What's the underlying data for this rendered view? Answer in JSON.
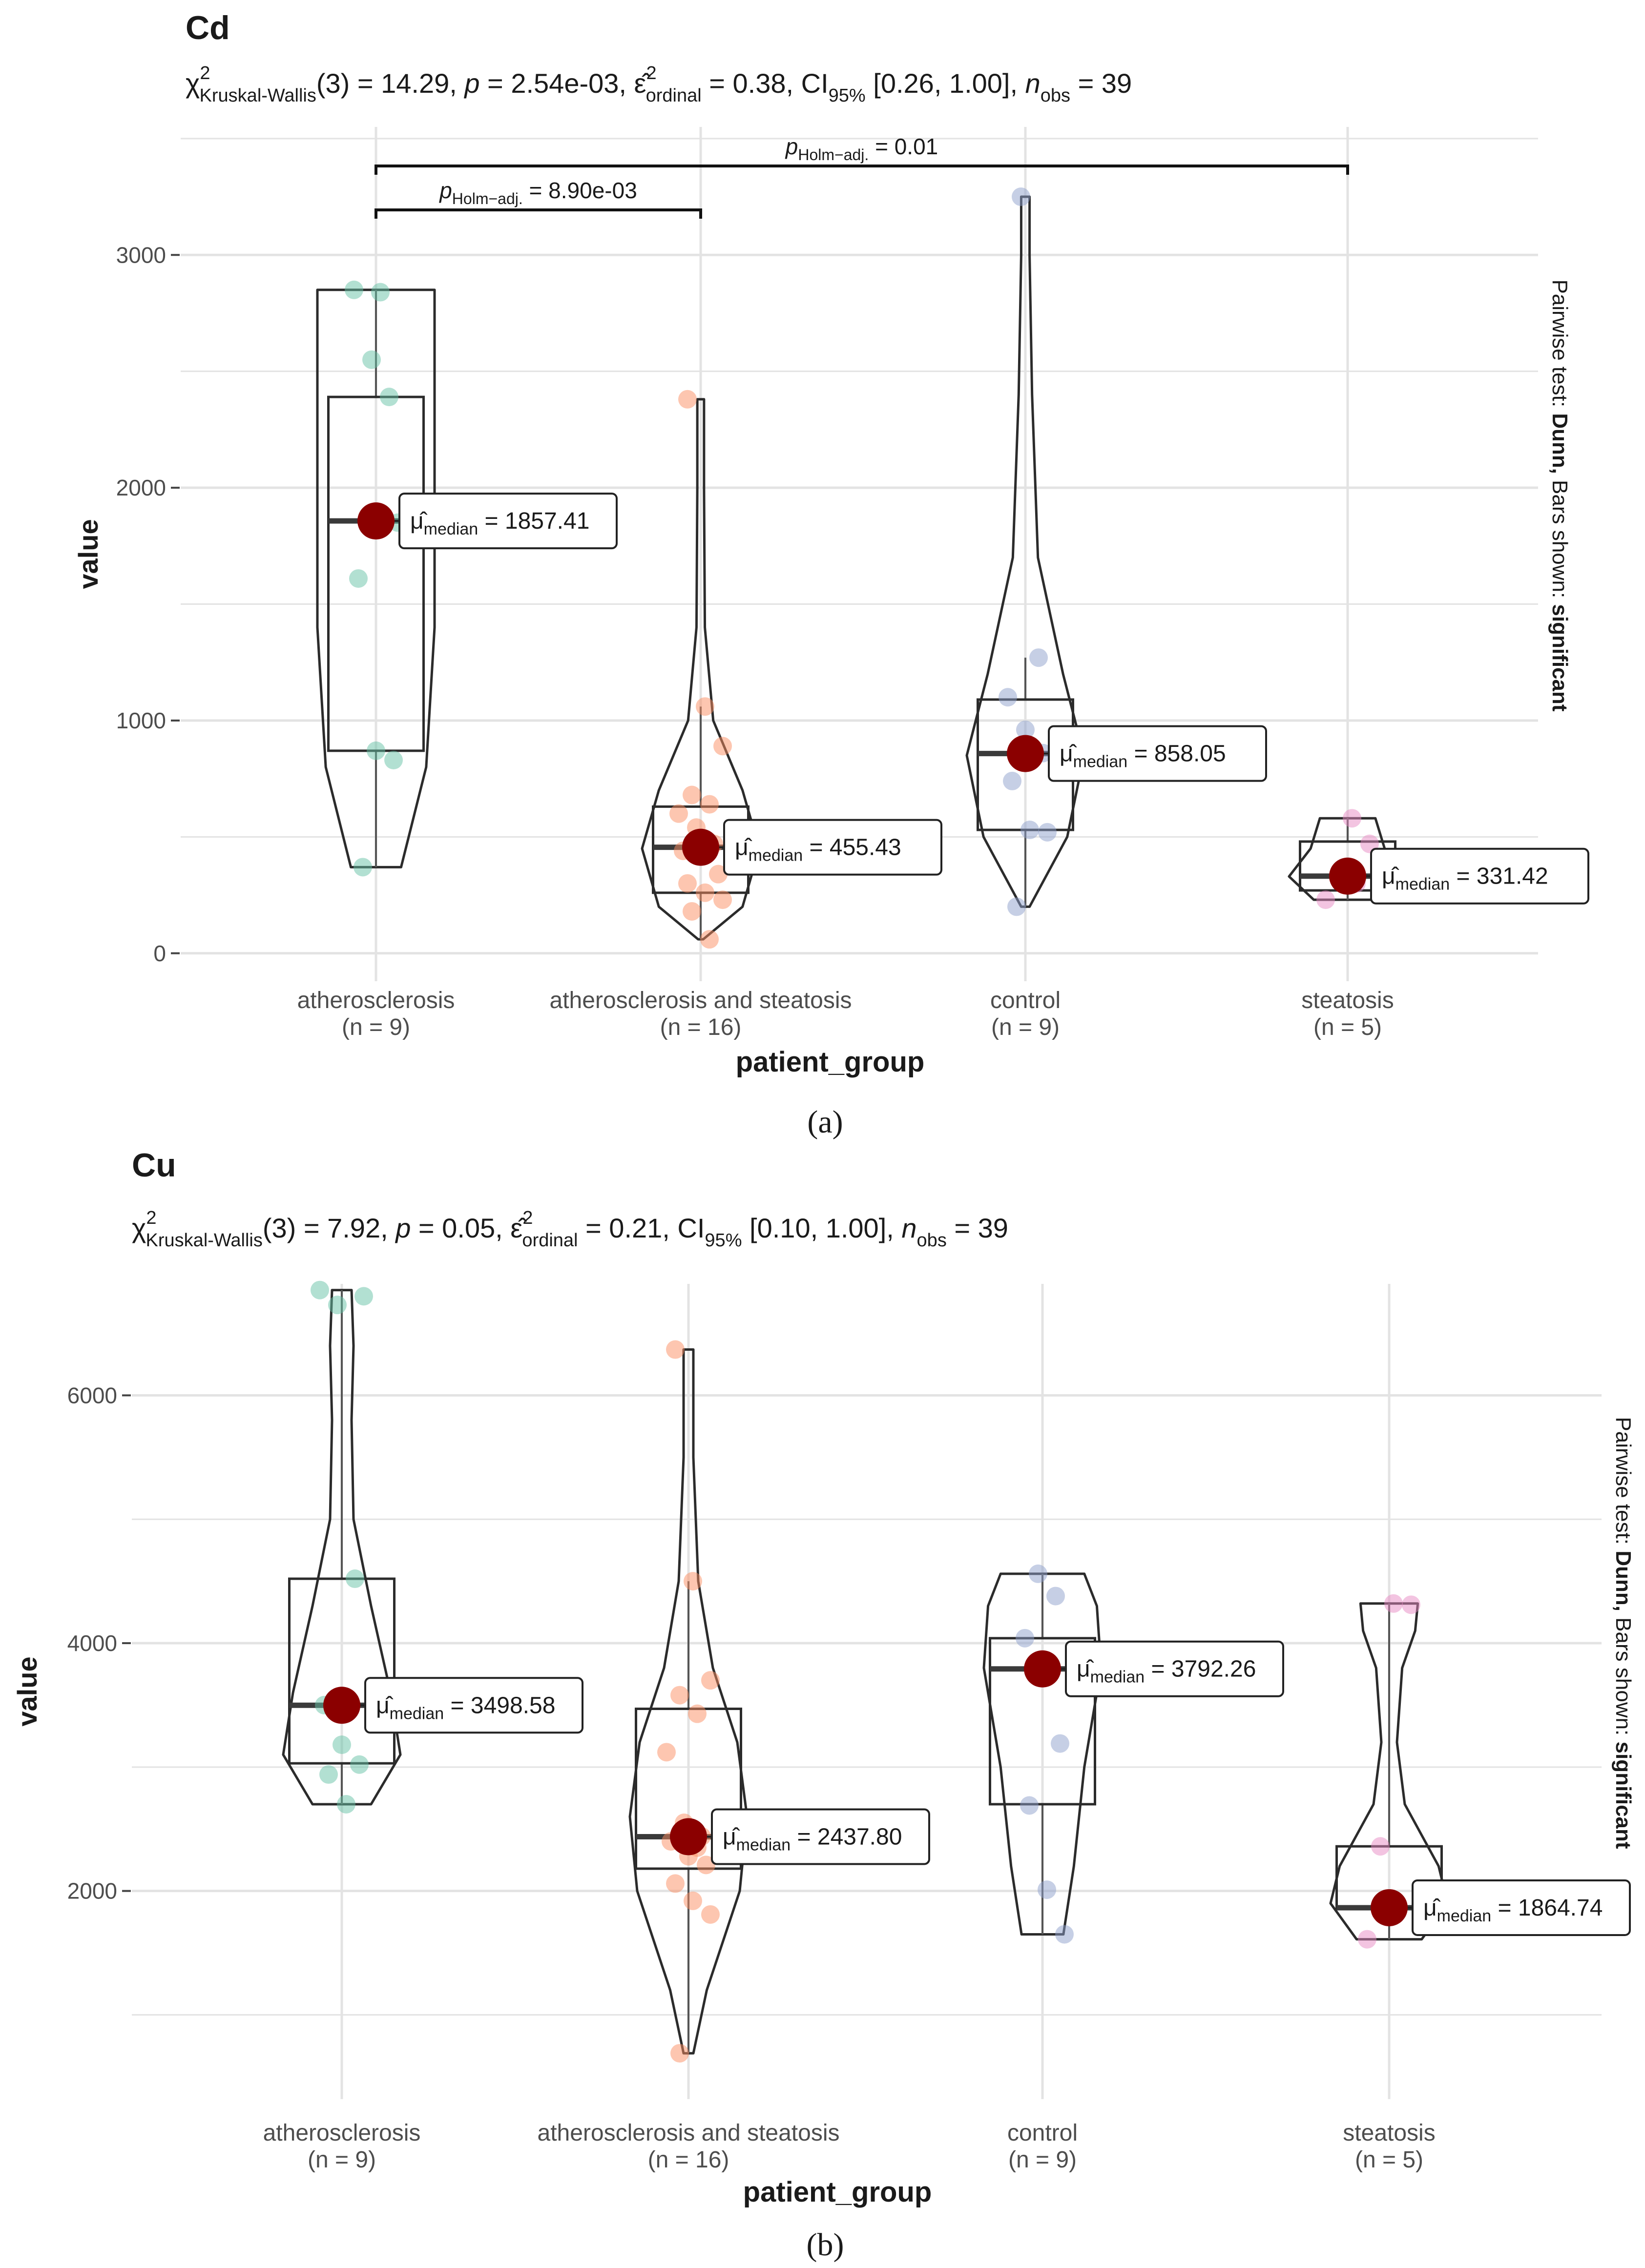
{
  "chart_data": [
    {
      "type": "violin-box",
      "title": "Cd",
      "stats": {
        "chi_sym": "χ",
        "chi_sup": "2",
        "chi_sub": "Kruskal-Wallis",
        "chi_val": "(3) = 14.29, ",
        "p_sym": "p",
        "p_val": " = 2.54e-03, ",
        "eps_sym": "ε̂",
        "eps_sup": "2",
        "eps_sub": "ordinal",
        "eps_val": " = 0.38, CI",
        "ci_sub": "95%",
        "ci_val": " [0.26, 1.00], ",
        "n_sym": "n",
        "n_sub": "obs",
        "n_val": " = 39"
      },
      "xlabel": "patient_group",
      "ylabel": "value",
      "ylim": [
        -120,
        3550
      ],
      "yticks": [
        0,
        1000,
        2000,
        3000
      ],
      "ytick_labels": [
        "0",
        "1000",
        "2000",
        "3000"
      ],
      "side_note": {
        "prefix": "Pairwise test: ",
        "test": "Dunn,",
        "middle": " Bars shown: ",
        "shown": "significant"
      },
      "groups": [
        {
          "name": "atherosclerosis",
          "n": "(n = 9)",
          "color": "#66c2a5",
          "points": [
            2850,
            2550,
            2390,
            1610,
            870,
            830,
            370,
            2840,
            1850
          ],
          "box": {
            "q1": 870,
            "median": 1857.41,
            "q3": 2390,
            "wlo": 370,
            "whi": 2850
          },
          "median_label": "= 1857.41",
          "violin": [
            [
              370,
              0.03
            ],
            [
              800,
              0.06
            ],
            [
              1400,
              0.07
            ],
            [
              2000,
              0.07
            ],
            [
              2500,
              0.07
            ],
            [
              2850,
              0.07
            ]
          ]
        },
        {
          "name": "atherosclerosis and steatosis",
          "n": "(n = 16)",
          "color": "#fc8d62",
          "points": [
            2380,
            1060,
            890,
            680,
            640,
            600,
            540,
            470,
            440,
            420,
            340,
            300,
            260,
            230,
            180,
            60
          ],
          "box": {
            "q1": 260,
            "median": 455.43,
            "q3": 630,
            "wlo": 60,
            "whi": 1060
          },
          "median_label": "= 455.43",
          "violin": [
            [
              60,
              0.03
            ],
            [
              200,
              0.5
            ],
            [
              450,
              0.7
            ],
            [
              700,
              0.5
            ],
            [
              1000,
              0.15
            ],
            [
              1400,
              0.05
            ],
            [
              2000,
              0.04
            ],
            [
              2380,
              0.04
            ]
          ]
        },
        {
          "name": "control",
          "n": "(n = 9)",
          "color": "#8da0cb",
          "points": [
            3250,
            1270,
            1100,
            960,
            860,
            740,
            530,
            520,
            200
          ],
          "box": {
            "q1": 530,
            "median": 858.05,
            "q3": 1090,
            "wlo": 200,
            "whi": 1270
          },
          "median_label": "= 858.05",
          "violin": [
            [
              200,
              0.05
            ],
            [
              500,
              0.5
            ],
            [
              850,
              0.7
            ],
            [
              1200,
              0.45
            ],
            [
              1700,
              0.15
            ],
            [
              2400,
              0.08
            ],
            [
              3000,
              0.05
            ],
            [
              3250,
              0.05
            ]
          ]
        },
        {
          "name": "steatosis",
          "n": "(n = 5)",
          "color": "#e78ac3",
          "points": [
            580,
            470,
            330,
            300,
            230
          ],
          "box": {
            "q1": 270,
            "median": 331.42,
            "q3": 480,
            "wlo": 230,
            "whi": 580
          },
          "median_label": "= 331.42",
          "violin": [
            [
              230,
              0.55
            ],
            [
              330,
              0.95
            ],
            [
              450,
              0.6
            ],
            [
              580,
              0.45
            ]
          ]
        }
      ],
      "brackets": [
        {
          "from": 0,
          "to": 1,
          "label": "= 8.90e-03",
          "level": 0
        },
        {
          "from": 0,
          "to": 3,
          "label": "= 0.01",
          "level": 1
        }
      ],
      "bracket_p_sym": "p",
      "bracket_p_sub": "Holm−adj.",
      "median_sym": "μ̂",
      "median_sub": "median",
      "panel_label": "(a)"
    },
    {
      "type": "violin-box",
      "title": "Cu",
      "stats": {
        "chi_sym": "χ",
        "chi_sup": "2",
        "chi_sub": "Kruskal-Wallis",
        "chi_val": "(3) = 7.92, ",
        "p_sym": "p",
        "p_val": " = 0.05, ",
        "eps_sym": "ε̂",
        "eps_sup": "2",
        "eps_sub": "ordinal",
        "eps_val": " = 0.21, CI",
        "ci_sub": "95%",
        "ci_val": " [0.10, 1.00], ",
        "n_sym": "n",
        "n_sub": "obs",
        "n_val": " = 39"
      },
      "xlabel": "patient_group",
      "ylabel": "value",
      "ylim": [
        320,
        6900
      ],
      "yticks": [
        2000,
        4000,
        6000
      ],
      "ytick_labels": [
        "2000",
        "4000",
        "6000"
      ],
      "side_note": {
        "prefix": "Pairwise test: ",
        "test": "Dunn,",
        "middle": " Bars shown: ",
        "shown": "significant"
      },
      "groups": [
        {
          "name": "atherosclerosis",
          "n": "(n = 9)",
          "color": "#66c2a5",
          "points": [
            6850,
            6730,
            4520,
            3500,
            3180,
            3020,
            2940,
            2700,
            6800
          ],
          "box": {
            "q1": 3030,
            "median": 3498.58,
            "q3": 4520,
            "wlo": 2700,
            "whi": 6850
          },
          "median_label": "= 3498.58",
          "violin": [
            [
              2700,
              0.3
            ],
            [
              3100,
              0.6
            ],
            [
              3600,
              0.5
            ],
            [
              4300,
              0.3
            ],
            [
              5000,
              0.12
            ],
            [
              5800,
              0.1
            ],
            [
              6400,
              0.12
            ],
            [
              6850,
              0.1
            ]
          ]
        },
        {
          "name": "atherosclerosis and steatosis",
          "n": "(n = 16)",
          "color": "#fc8d62",
          "points": [
            6370,
            4500,
            3700,
            3580,
            3430,
            3120,
            2550,
            2440,
            2400,
            2280,
            2210,
            2060,
            1920,
            1810,
            690,
            2350
          ],
          "box": {
            "q1": 2180,
            "median": 2437.8,
            "q3": 3470,
            "wlo": 690,
            "whi": 4500
          },
          "median_label": "= 2437.80",
          "violin": [
            [
              690,
              0.04
            ],
            [
              1200,
              0.15
            ],
            [
              2000,
              0.42
            ],
            [
              2600,
              0.48
            ],
            [
              3200,
              0.4
            ],
            [
              3800,
              0.2
            ],
            [
              4500,
              0.08
            ],
            [
              5500,
              0.04
            ],
            [
              6370,
              0.04
            ]
          ]
        },
        {
          "name": "control",
          "n": "(n = 9)",
          "color": "#8da0cb",
          "points": [
            4560,
            4380,
            4040,
            3790,
            3190,
            2690,
            2010,
            1650,
            3800
          ],
          "box": {
            "q1": 2700,
            "median": 3792.26,
            "q3": 4040,
            "wlo": 1650,
            "whi": 4560
          },
          "median_label": "= 3792.26",
          "violin": [
            [
              1650,
              0.1
            ],
            [
              2200,
              0.15
            ],
            [
              3000,
              0.2
            ],
            [
              3800,
              0.28
            ],
            [
              4300,
              0.26
            ],
            [
              4560,
              0.2
            ]
          ]
        },
        {
          "name": "steatosis",
          "n": "(n = 5)",
          "color": "#e78ac3",
          "points": [
            4320,
            4310,
            2360,
            1860,
            1610
          ],
          "box": {
            "q1": 1860,
            "median": 1864.74,
            "q3": 2360,
            "wlo": 1610,
            "whi": 4320
          },
          "median_label": "= 1864.74",
          "violin": [
            [
              1610,
              0.25
            ],
            [
              1900,
              0.45
            ],
            [
              2200,
              0.38
            ],
            [
              2700,
              0.12
            ],
            [
              3200,
              0.06
            ],
            [
              3800,
              0.1
            ],
            [
              4100,
              0.2
            ],
            [
              4320,
              0.22
            ]
          ]
        }
      ],
      "brackets": [],
      "median_sym": "μ̂",
      "median_sub": "median",
      "panel_label": "(b)"
    }
  ]
}
